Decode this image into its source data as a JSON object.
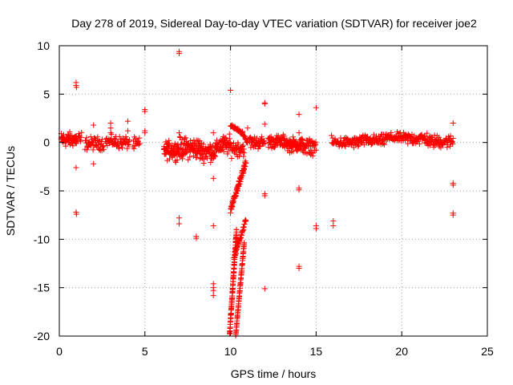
{
  "chart_data": {
    "type": "scatter",
    "title": "Day 278 of 2019, Sidereal Day-to-day VTEC variation (SDTVAR) for receiver joe2",
    "xlabel": "GPS time / hours",
    "ylabel": "SDTVAR / TECUs",
    "xlim": [
      0,
      25
    ],
    "ylim": [
      -20,
      10
    ],
    "x_ticks": [
      0,
      5,
      10,
      15,
      20,
      25
    ],
    "y_ticks": [
      -20,
      -15,
      -10,
      -5,
      0,
      5,
      10
    ],
    "x_tick_labels": [
      "0",
      "5",
      "10",
      "15",
      "20",
      "25"
    ],
    "y_tick_labels": [
      "-20",
      "-15",
      "-10",
      "-5",
      "0",
      "5",
      "10"
    ],
    "grid": true,
    "marker": "+",
    "color": "#ff0000",
    "clusters": [
      {
        "x0": 0.1,
        "x1": 1.0,
        "yc": 0.3,
        "spread": 0.9,
        "n": 70
      },
      {
        "x0": 1.0,
        "x1": 1.3,
        "yc": 0.2,
        "spread": 1.2,
        "n": 12
      },
      {
        "x0": 1.5,
        "x1": 2.6,
        "yc": -0.1,
        "spread": 0.8,
        "n": 50
      },
      {
        "x0": 2.7,
        "x1": 3.3,
        "yc": 0.1,
        "spread": 0.7,
        "n": 25
      },
      {
        "x0": 3.2,
        "x1": 4.1,
        "yc": 0.0,
        "spread": 0.8,
        "n": 35
      },
      {
        "x0": 4.3,
        "x1": 4.7,
        "yc": -0.2,
        "spread": 0.8,
        "n": 15
      },
      {
        "x0": 6.1,
        "x1": 7.0,
        "yc": -0.8,
        "spread": 1.1,
        "n": 70
      },
      {
        "x0": 7.0,
        "x1": 8.2,
        "yc": -0.6,
        "spread": 1.3,
        "n": 90
      },
      {
        "x0": 8.2,
        "x1": 9.2,
        "yc": -0.9,
        "spread": 1.2,
        "n": 70
      },
      {
        "x0": 9.2,
        "x1": 10.0,
        "yc": -0.3,
        "spread": 1.2,
        "n": 50
      },
      {
        "x0": 10.0,
        "x1": 10.8,
        "yc": -0.6,
        "spread": 1.0,
        "n": 40
      },
      {
        "x0": 11.1,
        "x1": 12.0,
        "yc": 0.0,
        "spread": 0.8,
        "n": 45
      },
      {
        "x0": 12.2,
        "x1": 13.3,
        "yc": 0.1,
        "spread": 0.8,
        "n": 60
      },
      {
        "x0": 13.3,
        "x1": 14.2,
        "yc": -0.2,
        "spread": 0.9,
        "n": 55
      },
      {
        "x0": 14.2,
        "x1": 15.0,
        "yc": -0.3,
        "spread": 0.8,
        "n": 40
      },
      {
        "x0": 15.9,
        "x1": 17.5,
        "yc": 0.0,
        "spread": 0.7,
        "n": 70
      },
      {
        "x0": 17.5,
        "x1": 19.0,
        "yc": 0.2,
        "spread": 0.7,
        "n": 70
      },
      {
        "x0": 19.0,
        "x1": 20.2,
        "yc": 0.5,
        "spread": 0.6,
        "n": 55
      },
      {
        "x0": 20.2,
        "x1": 21.5,
        "yc": 0.4,
        "spread": 0.8,
        "n": 60
      },
      {
        "x0": 21.5,
        "x1": 23.0,
        "yc": 0.1,
        "spread": 0.8,
        "n": 70
      }
    ],
    "tracks": [
      {
        "x0": 10.0,
        "y0": 1.8,
        "x1": 10.7,
        "y1": 1.0,
        "n": 30,
        "jitter": 0.15
      },
      {
        "x0": 10.7,
        "y0": 1.0,
        "x1": 11.0,
        "y1": 0.0,
        "n": 15,
        "jitter": 0.2
      },
      {
        "x0": 10.0,
        "y0": -7.0,
        "x1": 10.9,
        "y1": -2.0,
        "n": 80,
        "jitter": 0.3
      },
      {
        "x0": 9.95,
        "y0": -19.8,
        "x1": 10.35,
        "y1": -9.0,
        "n": 90,
        "jitter": 0.15
      },
      {
        "x0": 10.3,
        "y0": -20.0,
        "x1": 10.8,
        "y1": -10.3,
        "n": 70,
        "jitter": 0.12
      },
      {
        "x0": 10.2,
        "y0": -12.0,
        "x1": 10.9,
        "y1": -8.0,
        "n": 45,
        "jitter": 0.2
      },
      {
        "x0": 12.9,
        "y0": 0.0,
        "x1": 14.8,
        "y1": -1.2,
        "n": 18,
        "jitter": 0.2
      }
    ],
    "points": [
      [
        0.98,
        6.2
      ],
      [
        0.98,
        5.9
      ],
      [
        1.0,
        5.7
      ],
      [
        0.98,
        -7.2
      ],
      [
        1.0,
        -7.4
      ],
      [
        0.98,
        -2.6
      ],
      [
        2.0,
        -2.2
      ],
      [
        2.0,
        1.8
      ],
      [
        3.0,
        1.5
      ],
      [
        3.0,
        1.0
      ],
      [
        3.0,
        2.0
      ],
      [
        4.0,
        2.2
      ],
      [
        4.0,
        1.2
      ],
      [
        5.0,
        3.4
      ],
      [
        5.0,
        3.2
      ],
      [
        5.0,
        1.2
      ],
      [
        5.0,
        1.0
      ],
      [
        7.0,
        9.4
      ],
      [
        7.0,
        9.2
      ],
      [
        7.0,
        1.0
      ],
      [
        7.0,
        -7.8
      ],
      [
        7.0,
        -8.4
      ],
      [
        8.0,
        -9.7
      ],
      [
        8.0,
        -9.9
      ],
      [
        9.0,
        -3.7
      ],
      [
        9.0,
        1.0
      ],
      [
        9.0,
        -8.6
      ],
      [
        9.0,
        -14.6
      ],
      [
        9.0,
        -15.0
      ],
      [
        9.0,
        -15.3
      ],
      [
        9.0,
        -15.8
      ],
      [
        10.0,
        5.4
      ],
      [
        11.0,
        1.5
      ],
      [
        12.0,
        4.1
      ],
      [
        12.0,
        4.0
      ],
      [
        12.0,
        1.9
      ],
      [
        12.0,
        -5.3
      ],
      [
        12.0,
        -5.5
      ],
      [
        12.0,
        -15.1
      ],
      [
        14.0,
        2.9
      ],
      [
        14.0,
        1.0
      ],
      [
        14.0,
        -4.7
      ],
      [
        14.0,
        -4.9
      ],
      [
        14.0,
        -12.8
      ],
      [
        14.0,
        -13.0
      ],
      [
        15.0,
        3.6
      ],
      [
        15.0,
        -8.6
      ],
      [
        15.0,
        -8.9
      ],
      [
        16.0,
        -8.1
      ],
      [
        16.0,
        -8.6
      ],
      [
        23.0,
        2.0
      ],
      [
        23.0,
        -4.2
      ],
      [
        23.0,
        -4.4
      ],
      [
        23.0,
        -7.3
      ],
      [
        23.0,
        -7.5
      ]
    ]
  }
}
